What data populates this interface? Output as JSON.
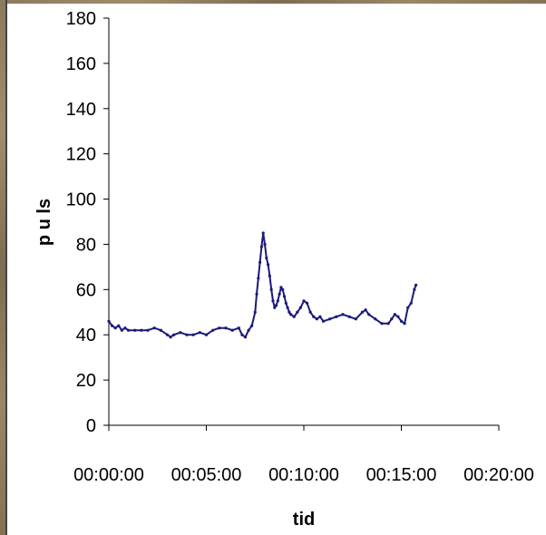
{
  "chart_data": {
    "type": "line",
    "title": "",
    "xlabel": "tid",
    "ylabel": "p u ls",
    "ylim": [
      0,
      180
    ],
    "yticks": [
      0,
      20,
      40,
      60,
      80,
      100,
      120,
      140,
      160,
      180
    ],
    "xlim_seconds": [
      0,
      1200
    ],
    "xticks": [
      "00:00:00",
      "00:05:00",
      "00:10:00",
      "00:15:00",
      "00:20:00"
    ],
    "grid": false,
    "legend": "none",
    "line_color": "#1a1a7a",
    "series": [
      {
        "x": [
          "00:00:00",
          "00:00:10",
          "00:00:20",
          "00:00:30",
          "00:00:40",
          "00:00:50",
          "00:01:00",
          "00:01:20",
          "00:01:40",
          "00:02:00",
          "00:02:20",
          "00:02:40",
          "00:03:00",
          "00:03:10",
          "00:03:20",
          "00:03:40",
          "00:04:00",
          "00:04:20",
          "00:04:40",
          "00:05:00",
          "00:05:20",
          "00:05:40",
          "00:06:00",
          "00:06:20",
          "00:06:40",
          "00:06:50",
          "00:07:00",
          "00:07:10",
          "00:07:20",
          "00:07:30",
          "00:07:35",
          "00:07:40",
          "00:07:45",
          "00:07:50",
          "00:07:55",
          "00:08:00",
          "00:08:05",
          "00:08:10",
          "00:08:15",
          "00:08:20",
          "00:08:25",
          "00:08:30",
          "00:08:35",
          "00:08:40",
          "00:08:45",
          "00:08:50",
          "00:08:55",
          "00:09:00",
          "00:09:05",
          "00:09:10",
          "00:09:15",
          "00:09:20",
          "00:09:30",
          "00:09:40",
          "00:09:50",
          "00:10:00",
          "00:10:10",
          "00:10:20",
          "00:10:30",
          "00:10:40",
          "00:10:50",
          "00:11:00",
          "00:11:20",
          "00:11:40",
          "00:12:00",
          "00:12:20",
          "00:12:40",
          "00:13:00",
          "00:13:10",
          "00:13:20",
          "00:13:40",
          "00:14:00",
          "00:14:20",
          "00:14:30",
          "00:14:40",
          "00:14:50",
          "00:15:00",
          "00:15:10",
          "00:15:20",
          "00:15:30",
          "00:15:40",
          "00:15:45"
        ],
        "y": [
          46,
          44,
          43,
          44,
          42,
          43,
          42,
          42,
          42,
          42,
          43,
          42,
          40,
          39,
          40,
          41,
          40,
          40,
          41,
          40,
          42,
          43,
          43,
          42,
          43,
          40,
          39,
          42,
          44,
          50,
          58,
          65,
          72,
          79,
          85,
          80,
          74,
          71,
          66,
          60,
          55,
          52,
          53,
          55,
          58,
          61,
          60,
          57,
          54,
          52,
          50,
          49,
          48,
          50,
          52,
          55,
          54,
          50,
          48,
          47,
          48,
          46,
          47,
          48,
          49,
          48,
          47,
          50,
          51,
          49,
          47,
          45,
          45,
          47,
          49,
          48,
          46,
          45,
          52,
          54,
          60,
          62
        ]
      }
    ]
  }
}
